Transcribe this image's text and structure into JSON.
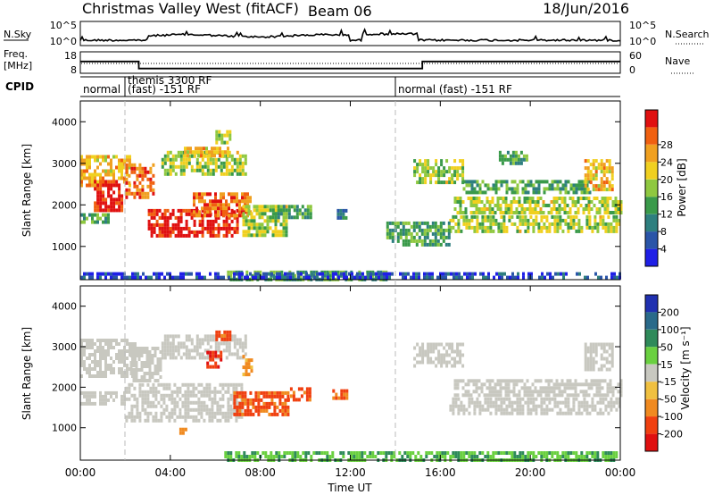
{
  "header": {
    "title": "Christmas Valley West (fitACF)",
    "beam": "Beam 06",
    "date": "18/Jun/2016"
  },
  "nsky_panel": {
    "left_label": "N.Sky",
    "left_ticks": [
      "10^5",
      "10^0"
    ],
    "right_ticks": [
      "10^5",
      "10^0"
    ],
    "right_label": "N.Search"
  },
  "freq_panel": {
    "left_label_1": "Freq.",
    "left_label_2": "[MHz]",
    "left_ticks": [
      "18",
      "8"
    ],
    "right_ticks": [
      "60",
      "0"
    ],
    "right_label": "Nave"
  },
  "cpid_panel": {
    "label": "CPID",
    "segments": [
      {
        "start_h": 0,
        "end_h": 1.9,
        "lines": [
          "normal"
        ]
      },
      {
        "start_h": 1.9,
        "end_h": 14.0,
        "lines": [
          "themis 3300 RF",
          "(fast) -151 RF"
        ]
      },
      {
        "start_h": 14.0,
        "end_h": 24,
        "lines": [
          "normal (fast) -151 RF"
        ]
      }
    ]
  },
  "time_axis": {
    "label": "Time UT",
    "ticks": [
      "00:00",
      "04:00",
      "08:00",
      "12:00",
      "16:00",
      "20:00",
      "00:00"
    ]
  },
  "range_axis": {
    "label": "Slant Range [km]",
    "ticks": [
      "1000",
      "2000",
      "3000",
      "4000"
    ]
  },
  "power_scale": {
    "label": "Power [dB]",
    "ticks": [
      "4",
      "8",
      "12",
      "16",
      "20",
      "24",
      "28"
    ],
    "colors": [
      "#1f1fe6",
      "#2a55a8",
      "#2e7f7f",
      "#3a9a4a",
      "#8fc840",
      "#f0d020",
      "#f0a020",
      "#f06010",
      "#e01010"
    ]
  },
  "velocity_scale": {
    "label": "Velocity [m s⁻¹]",
    "ticks": [
      "200",
      "100",
      "50",
      "15",
      "-15",
      "-50",
      "-100",
      "-200"
    ],
    "colors": [
      "#2030b0",
      "#2a6a8a",
      "#2f8a5a",
      "#6ad040",
      "#c8c8c0",
      "#f0c040",
      "#f08a20",
      "#f04010",
      "#e01010"
    ]
  },
  "chart_data": {
    "type": "heatmap",
    "x_units": "hours UT",
    "xlim": [
      0,
      24
    ],
    "ylim": [
      200,
      4500
    ],
    "freq_mhz": [
      {
        "start_h": 0,
        "end_h": 2.6,
        "value": 13.5
      },
      {
        "start_h": 2.6,
        "end_h": 15.2,
        "value": 10.2
      },
      {
        "start_h": 15.2,
        "end_h": 24,
        "value": 13.5
      }
    ],
    "power_regions": [
      {
        "t0": 0.0,
        "t1": 2.2,
        "r0": 2500,
        "r1": 3200,
        "level": 20
      },
      {
        "t0": 0.6,
        "t1": 1.8,
        "r0": 1900,
        "r1": 2600,
        "level": 28
      },
      {
        "t0": 0.0,
        "t1": 1.2,
        "r0": 1550,
        "r1": 1800,
        "level": 12
      },
      {
        "t0": 2.0,
        "t1": 3.2,
        "r0": 2200,
        "r1": 3000,
        "level": 24
      },
      {
        "t0": 3.0,
        "t1": 7.0,
        "r0": 1250,
        "r1": 1900,
        "level": 28
      },
      {
        "t0": 5.0,
        "t1": 7.5,
        "r0": 1700,
        "r1": 2300,
        "level": 24
      },
      {
        "t0": 3.6,
        "t1": 7.4,
        "r0": 2700,
        "r1": 3300,
        "level": 16
      },
      {
        "t0": 4.6,
        "t1": 6.6,
        "r0": 3200,
        "r1": 3400,
        "level": 20
      },
      {
        "t0": 6.0,
        "t1": 6.6,
        "r0": 3500,
        "r1": 3800,
        "level": 16
      },
      {
        "t0": 7.2,
        "t1": 9.2,
        "r0": 1300,
        "r1": 2000,
        "level": 16
      },
      {
        "t0": 8.4,
        "t1": 10.2,
        "r0": 1700,
        "r1": 2000,
        "level": 12
      },
      {
        "t0": 11.4,
        "t1": 11.8,
        "r0": 1700,
        "r1": 1900,
        "level": 8
      },
      {
        "t0": 14.8,
        "t1": 17.0,
        "r0": 2500,
        "r1": 3100,
        "level": 16
      },
      {
        "t0": 16.6,
        "t1": 24.0,
        "r0": 1800,
        "r1": 2200,
        "level": 16
      },
      {
        "t0": 16.4,
        "t1": 24.0,
        "r0": 1350,
        "r1": 1750,
        "level": 16
      },
      {
        "t0": 17.0,
        "t1": 22.6,
        "r0": 2300,
        "r1": 2600,
        "level": 12
      },
      {
        "t0": 18.6,
        "t1": 19.8,
        "r0": 3000,
        "r1": 3300,
        "level": 12
      },
      {
        "t0": 22.4,
        "t1": 23.6,
        "r0": 2400,
        "r1": 3100,
        "level": 20
      },
      {
        "t0": 13.6,
        "t1": 16.4,
        "r0": 1000,
        "r1": 1600,
        "level": 12
      },
      {
        "t0": 6.4,
        "t1": 13.6,
        "r0": 220,
        "r1": 420,
        "level": 12
      },
      {
        "t0": 0.0,
        "t1": 24.0,
        "r0": 220,
        "r1": 380,
        "level": 4
      }
    ],
    "velocity_regions": [
      {
        "t0": 0.0,
        "t1": 2.4,
        "r0": 2300,
        "r1": 3200,
        "v": 0
      },
      {
        "t0": 0.0,
        "t1": 2.0,
        "r0": 1550,
        "r1": 1900,
        "v": 0
      },
      {
        "t0": 2.0,
        "t1": 7.2,
        "r0": 1200,
        "r1": 2100,
        "v": 0
      },
      {
        "t0": 2.2,
        "t1": 3.6,
        "r0": 2200,
        "r1": 3000,
        "v": 0
      },
      {
        "t0": 3.6,
        "t1": 7.4,
        "r0": 2700,
        "r1": 3300,
        "v": 0
      },
      {
        "t0": 5.6,
        "t1": 6.2,
        "r0": 2500,
        "r1": 2900,
        "v": -150
      },
      {
        "t0": 6.0,
        "t1": 6.6,
        "r0": 3200,
        "r1": 3400,
        "v": -80
      },
      {
        "t0": 6.8,
        "t1": 9.2,
        "r0": 1350,
        "r1": 1900,
        "v": -80
      },
      {
        "t0": 7.2,
        "t1": 7.6,
        "r0": 2300,
        "r1": 2800,
        "v": -40
      },
      {
        "t0": 9.2,
        "t1": 10.2,
        "r0": 1650,
        "r1": 2000,
        "v": -80
      },
      {
        "t0": 11.2,
        "t1": 11.8,
        "r0": 1700,
        "r1": 1950,
        "v": -80
      },
      {
        "t0": 14.8,
        "t1": 17.0,
        "r0": 2500,
        "r1": 3100,
        "v": 0
      },
      {
        "t0": 16.6,
        "t1": 24.0,
        "r0": 1800,
        "r1": 2200,
        "v": 0
      },
      {
        "t0": 16.4,
        "t1": 24.0,
        "r0": 1350,
        "r1": 1750,
        "v": 0
      },
      {
        "t0": 22.4,
        "t1": 23.6,
        "r0": 2400,
        "r1": 3100,
        "v": 0
      },
      {
        "t0": 4.4,
        "t1": 4.7,
        "r0": 900,
        "r1": 1000,
        "v": -40
      },
      {
        "t0": 6.4,
        "t1": 24.0,
        "r0": 220,
        "r1": 420,
        "v": 30
      }
    ]
  }
}
